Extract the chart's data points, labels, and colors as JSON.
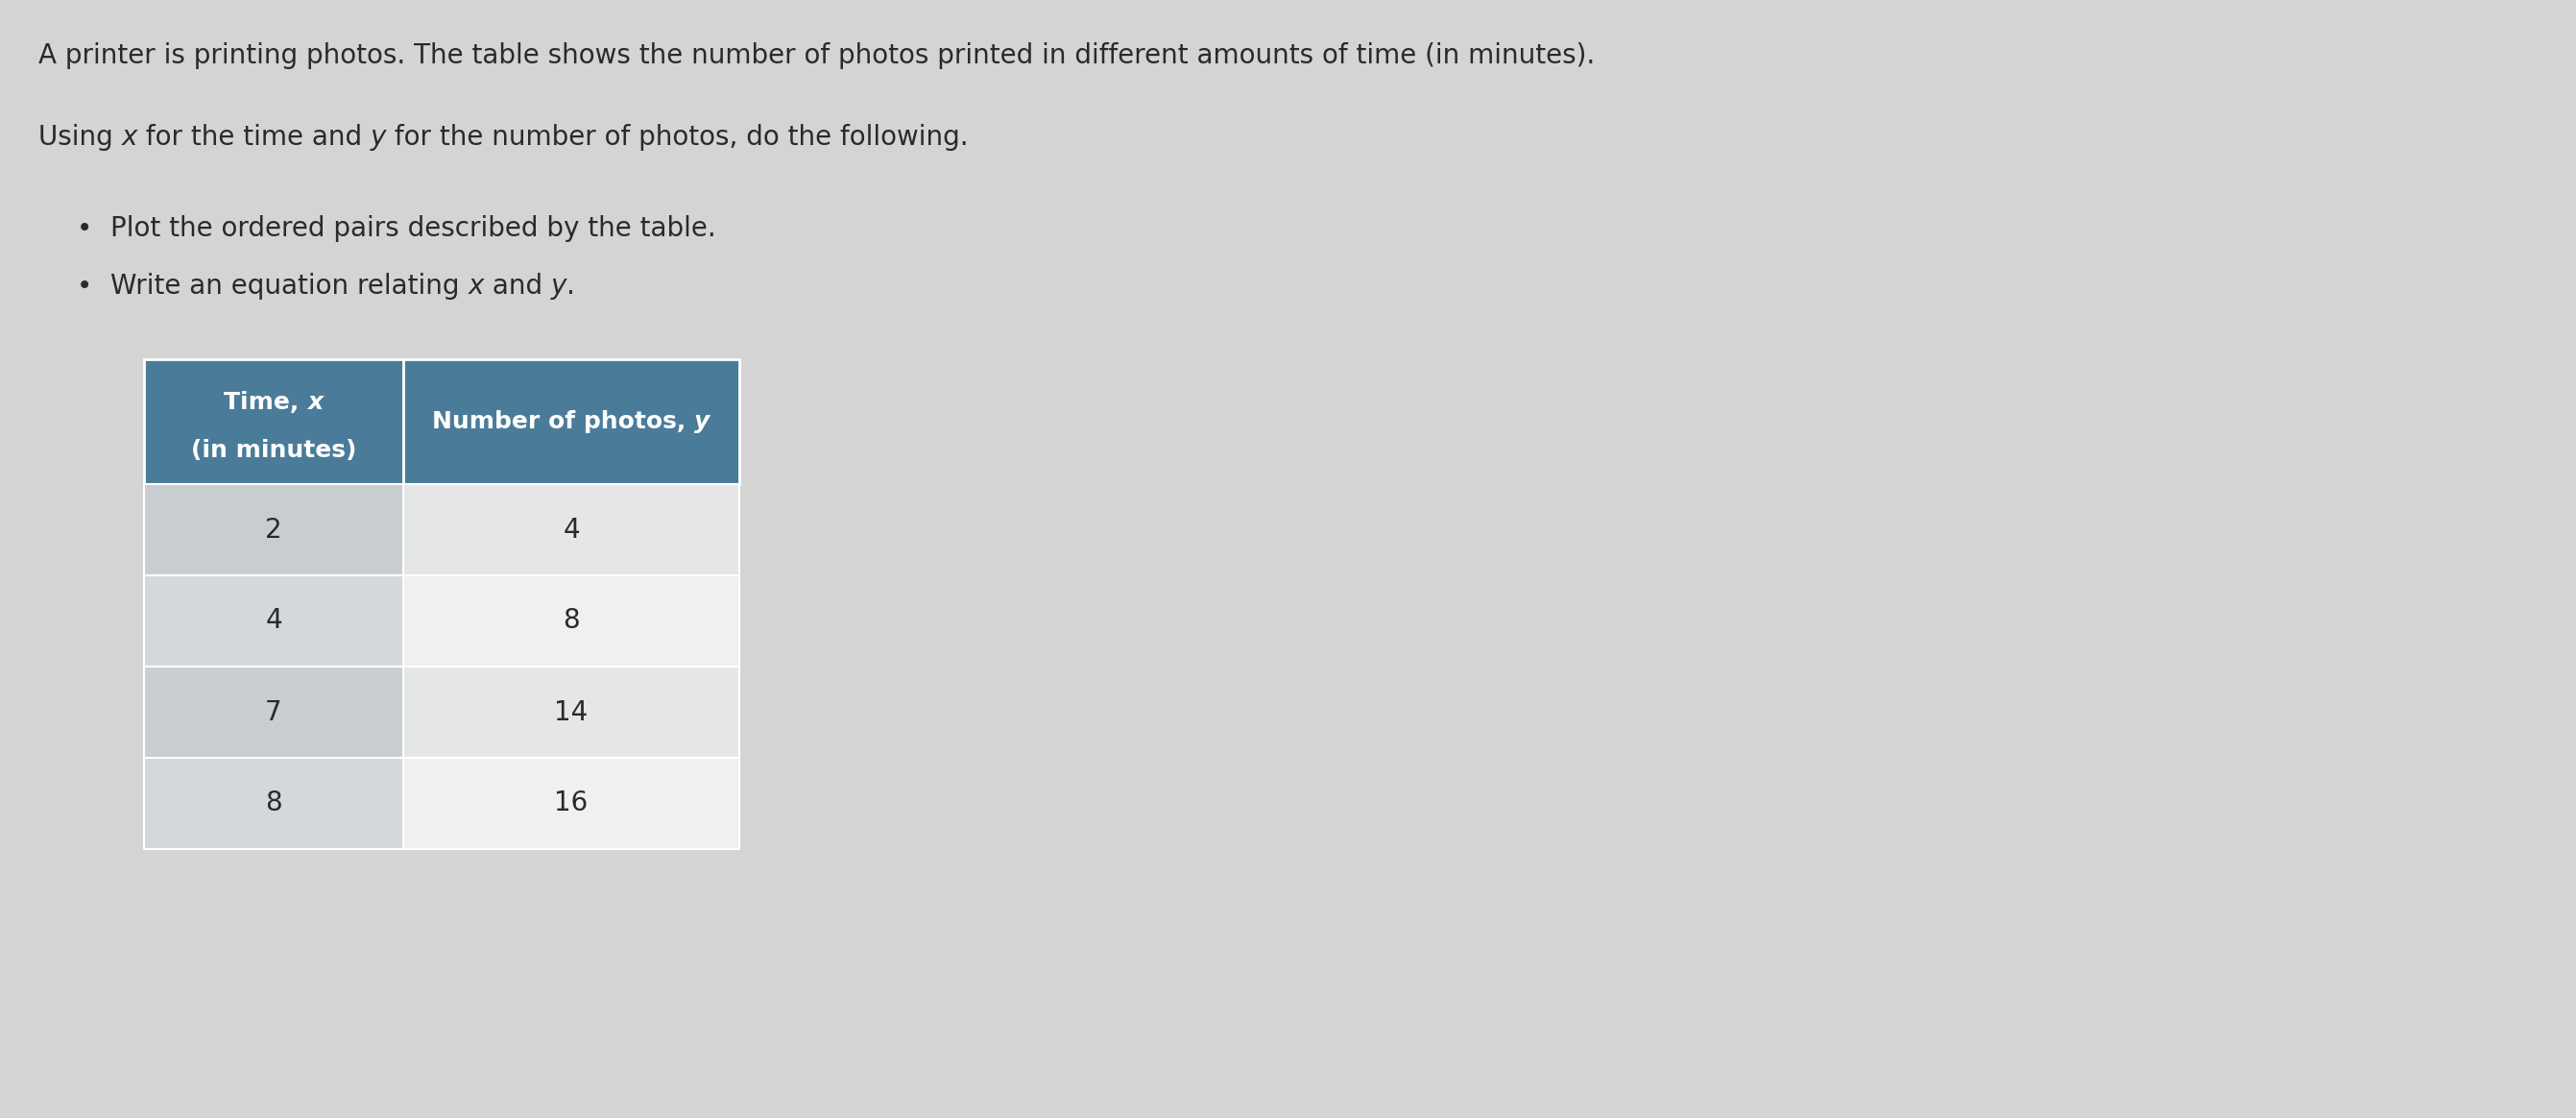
{
  "bg_color": "#d4d4d4",
  "title": "A printer is printing photos. The table shows the number of photos printed in different amounts of time (in minutes).",
  "subtitle_plain": "Using ",
  "subtitle_italic1": "x",
  "subtitle_mid": " for the time and ",
  "subtitle_italic2": "y",
  "subtitle_end": " for the number of photos, do the following.",
  "bullet1_pre": "Plot the ordered pairs described by the table.",
  "bullet2_pre": "Write an equation relating ",
  "bullet2_italic1": "x",
  "bullet2_mid": " and ",
  "bullet2_italic2": "y",
  "bullet2_end": ".",
  "header_col1_line1": "Time, ",
  "header_col1_italic": "x",
  "header_col1_line2": "(in minutes)",
  "header_col2_pre": "Number of photos, ",
  "header_col2_italic": "y",
  "header_bg": "#4a7c9a",
  "header_text_color": "#ffffff",
  "row_bg_light": "#e2e2e2",
  "row_bg_white": "#f8f8f8",
  "cell_divider": "#aaaaaa",
  "table_data": [
    [
      2,
      4
    ],
    [
      4,
      8
    ],
    [
      7,
      14
    ],
    [
      8,
      16
    ]
  ],
  "text_color": "#2a2a2a",
  "title_fontsize": 20,
  "body_fontsize": 20,
  "header_fontsize": 18,
  "cell_fontsize": 20
}
